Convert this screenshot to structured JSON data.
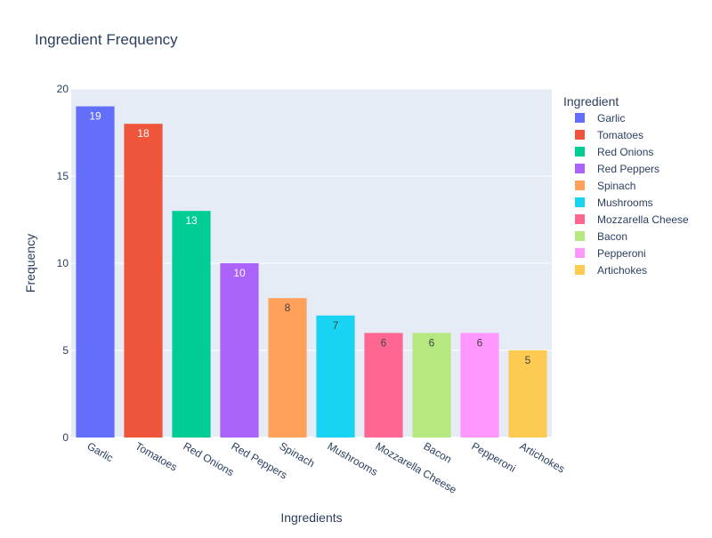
{
  "chart_data": {
    "type": "bar",
    "title": "Ingredient Frequency",
    "xlabel": "Ingredients",
    "ylabel": "Frequency",
    "ylim": [
      0,
      20
    ],
    "yticks": [
      0,
      5,
      10,
      15,
      20
    ],
    "categories": [
      "Garlic",
      "Tomatoes",
      "Red Onions",
      "Red Peppers",
      "Spinach",
      "Mushrooms",
      "Mozzarella Cheese",
      "Bacon",
      "Pepperoni",
      "Artichokes"
    ],
    "values": [
      19,
      18,
      13,
      10,
      8,
      7,
      6,
      6,
      6,
      5
    ],
    "colors": [
      "#636efa",
      "#EF553B",
      "#00cc96",
      "#ab63fa",
      "#FFA15A",
      "#19d3f3",
      "#FF6692",
      "#B6E880",
      "#FF97FF",
      "#FECB52"
    ],
    "legend": {
      "title": "Ingredient",
      "placement": "right"
    },
    "grid": true,
    "plot_background": "#E5ECF6"
  }
}
